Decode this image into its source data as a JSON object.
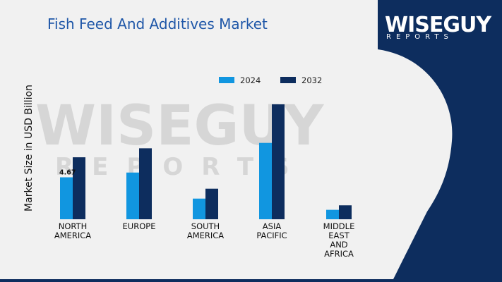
{
  "header": {
    "title": "Fish Feed And Additives Market"
  },
  "logo": {
    "main": "WISEGUY",
    "sub": "REPORTS"
  },
  "colors": {
    "series_2024": "#1196e0",
    "series_2032": "#0d2d5e",
    "panel": "#0d2d5e",
    "title": "#1f57a8"
  },
  "chart_data": {
    "type": "bar",
    "title": "Fish Feed And Additives Market",
    "ylabel": "Market Size in USD Billion",
    "xlabel": "",
    "categories": [
      [
        "NORTH",
        "AMERICA"
      ],
      [
        "EUROPE"
      ],
      [
        "SOUTH",
        "AMERICA"
      ],
      [
        "ASIA",
        "PACIFIC"
      ],
      [
        "MIDDLE",
        "EAST",
        "AND",
        "AFRICA"
      ]
    ],
    "series": [
      {
        "name": "2024",
        "color": "#1196e0",
        "values": [
          4.67,
          5.2,
          2.3,
          8.5,
          1.05
        ]
      },
      {
        "name": "2032",
        "color": "#0d2d5e",
        "values": [
          6.9,
          7.9,
          3.4,
          12.8,
          1.55
        ]
      }
    ],
    "data_labels": [
      {
        "series": 0,
        "index": 0,
        "text": "4.67"
      }
    ],
    "ylim": [
      0,
      13.5
    ],
    "legend": "top",
    "grid": false
  }
}
